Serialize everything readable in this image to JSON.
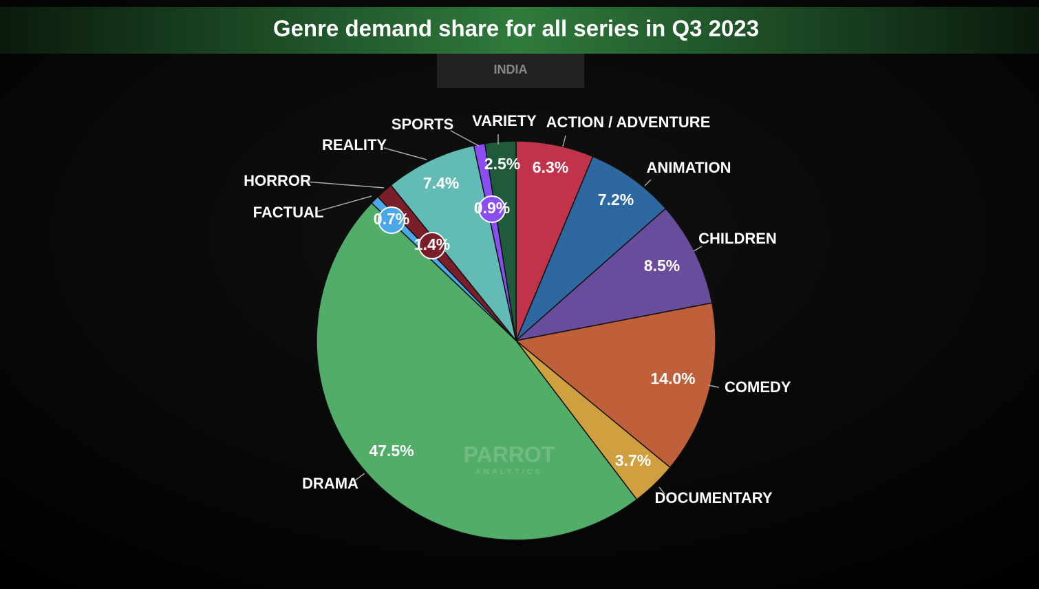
{
  "chart_data": {
    "type": "pie",
    "title": "Genre demand share for all series in Q3 2023",
    "subtitle": "INDIA",
    "watermark": "PARROT",
    "watermark_sub": "ANALYTICS",
    "categories": [
      "ACTION / ADVENTURE",
      "ANIMATION",
      "CHILDREN",
      "COMEDY",
      "DOCUMENTARY",
      "DRAMA",
      "FACTUAL",
      "HORROR",
      "REALITY",
      "SPORTS",
      "VARIETY"
    ],
    "values": [
      6.3,
      7.2,
      8.5,
      14.0,
      3.7,
      47.5,
      0.7,
      1.4,
      7.4,
      0.9,
      2.5
    ],
    "value_labels": [
      "6.3%",
      "7.2%",
      "8.5%",
      "14.0%",
      "3.7%",
      "47.5%",
      "0.7%",
      "1.4%",
      "7.4%",
      "0.9%",
      "2.5%"
    ],
    "colors": [
      "#c0334a",
      "#2e68a0",
      "#6a4c9c",
      "#c0603a",
      "#d0a040",
      "#52ad68",
      "#4aa8e8",
      "#7a1f2a",
      "#62bcb5",
      "#8a4ef0",
      "#1f5a3a"
    ]
  }
}
